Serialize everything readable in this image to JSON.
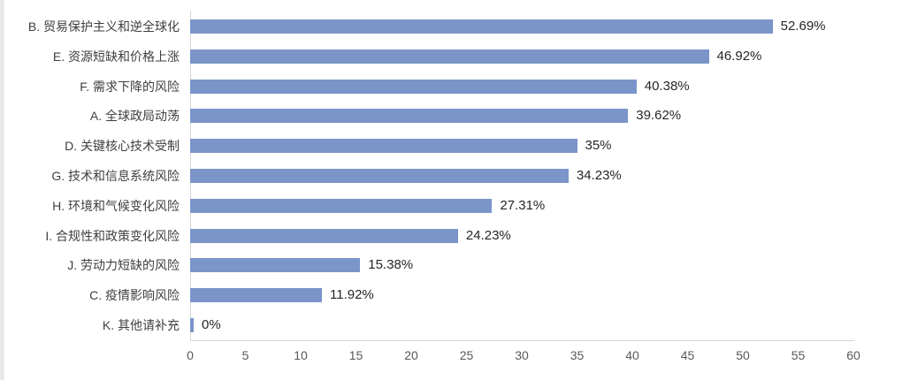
{
  "page": {
    "background": "#ffffff"
  },
  "chart_data": {
    "type": "bar",
    "orientation": "horizontal",
    "title": "",
    "xlabel": "",
    "ylabel": "",
    "grid": false,
    "legend": false,
    "categories": [
      "B. 贸易保护主义和逆全球化",
      "E. 资源短缺和价格上涨",
      "F. 需求下降的风险",
      "A. 全球政局动荡",
      "D. 关键核心技术受制",
      "G. 技术和信息系统风险",
      "H. 环境和气候变化风险",
      "I. 合规性和政策变化风险",
      "J. 劳动力短缺的风险",
      "C. 疫情影响风险",
      "K. 其他请补充"
    ],
    "values": [
      52.69,
      46.92,
      40.38,
      39.62,
      35,
      34.23,
      27.31,
      24.23,
      15.38,
      11.92,
      0
    ],
    "value_labels": [
      "52.69%",
      "46.92%",
      "40.38%",
      "39.62%",
      "35%",
      "34.23%",
      "27.31%",
      "24.23%",
      "15.38%",
      "11.92%",
      "0%"
    ],
    "x_ticks": [
      0,
      5,
      10,
      15,
      20,
      25,
      30,
      35,
      40,
      45,
      50,
      55,
      60
    ],
    "xlim": [
      0,
      60
    ],
    "bar_color": "#7B95C9",
    "axis_line_color": "#d6d6d6",
    "category_label_color": "#3f3f3f",
    "value_label_color": "#262626",
    "tick_label_color": "#595959"
  }
}
